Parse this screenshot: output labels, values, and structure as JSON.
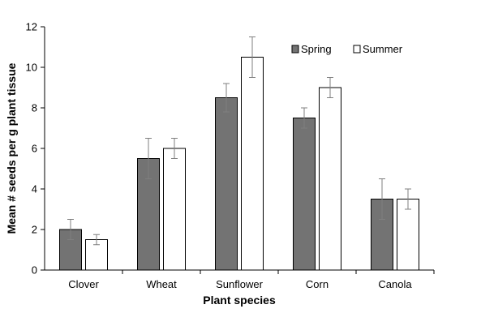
{
  "chart_data": {
    "type": "bar",
    "xlabel": "Plant species",
    "ylabel": "Mean # seeds per g plant tissue",
    "categories": [
      "Clover",
      "Wheat",
      "Sunflower",
      "Corn",
      "Canola"
    ],
    "ylim": [
      0,
      12
    ],
    "yticks": [
      "0",
      "2",
      "4",
      "6",
      "8",
      "10",
      "12"
    ],
    "legend_position": "top-right",
    "grid": false,
    "series": [
      {
        "name": "Spring",
        "values": [
          2.0,
          5.5,
          8.5,
          7.5,
          3.5
        ],
        "errors": [
          0.5,
          1.0,
          0.7,
          0.5,
          1.0
        ],
        "color": "#737373"
      },
      {
        "name": "Summer",
        "values": [
          1.5,
          6.0,
          10.5,
          9.0,
          3.5
        ],
        "errors": [
          0.25,
          0.5,
          1.0,
          0.5,
          0.5
        ],
        "color": "#ffffff"
      }
    ]
  }
}
